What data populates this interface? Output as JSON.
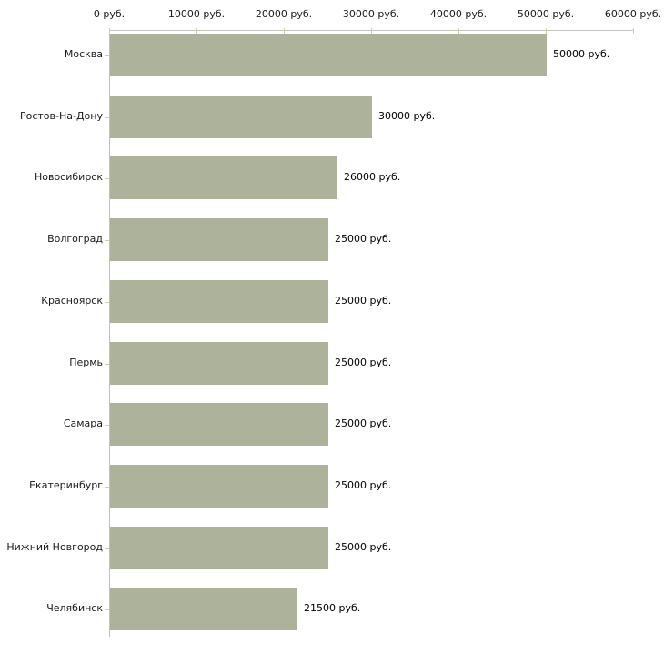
{
  "chart_data": {
    "type": "bar",
    "orientation": "horizontal",
    "title": "",
    "xlabel": "",
    "ylabel": "",
    "categories": [
      "Москва",
      "Ростов-На-Дону",
      "Новосибирск",
      "Волгоград",
      "Красноярск",
      "Пермь",
      "Самара",
      "Екатеринбург",
      "Нижний Новгород",
      "Челябинск"
    ],
    "values": [
      50000,
      30000,
      26000,
      25000,
      25000,
      25000,
      25000,
      25000,
      25000,
      21500
    ],
    "value_labels": [
      "50000 руб.",
      "30000 руб.",
      "26000 руб.",
      "25000 руб.",
      "25000 руб.",
      "25000 руб.",
      "25000 руб.",
      "25000 руб.",
      "25000 руб.",
      "21500 руб."
    ],
    "x_axis": {
      "position": "top",
      "tick_labels": [
        "0 руб.",
        "10000 руб.",
        "20000 руб.",
        "30000 руб.",
        "40000 руб.",
        "50000 руб.",
        "60000 руб."
      ],
      "tick_values": [
        0,
        10000,
        20000,
        30000,
        40000,
        50000,
        60000
      ],
      "min": 0,
      "max": 60000,
      "unit": "руб."
    },
    "grid": false,
    "legend": false,
    "colors": {
      "bar": "#adb39b",
      "axis_line": "#c4c4c0",
      "tick_mark": "#cfcfae",
      "text": "#000000",
      "background": "#ffffff"
    }
  }
}
